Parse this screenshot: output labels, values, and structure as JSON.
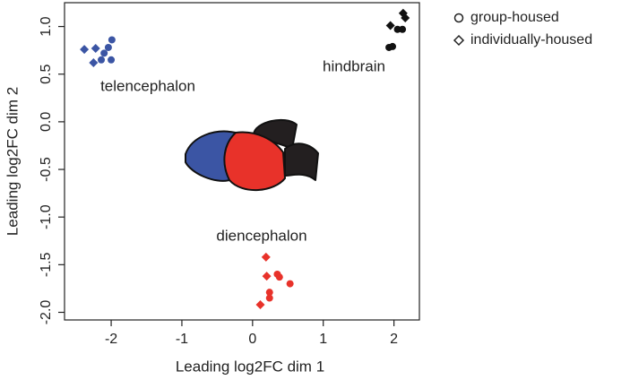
{
  "chart_data": {
    "type": "scatter",
    "x_label": "Leading log2FC dim 1",
    "y_label": "Leading log2FC dim 2",
    "xlim": [
      -2.66,
      2.36
    ],
    "ylim": [
      -2.08,
      1.25
    ],
    "xticks": [
      -2,
      -1,
      0,
      1,
      2
    ],
    "yticks": [
      {
        "value": 1,
        "label": "1.0"
      },
      0.5,
      {
        "value": 0,
        "label": "0.0"
      },
      -0.5,
      {
        "value": -1,
        "label": "-1.0"
      },
      -1.5,
      {
        "value": -2,
        "label": "-2.0"
      }
    ],
    "legend": [
      {
        "label": "group-housed",
        "marker": "circle"
      },
      {
        "label": "individually-housed",
        "marker": "diamond"
      }
    ],
    "series": [
      {
        "name": "telencephalon",
        "color": "#3b55a4",
        "group": {
          "x": [
            -1.99,
            -2.04,
            -2.1,
            -2.0,
            -2.14
          ],
          "y": [
            0.86,
            0.78,
            0.72,
            0.65,
            0.65
          ]
        },
        "individual": {
          "x": [
            -2.38,
            -2.22,
            -2.25
          ],
          "y": [
            0.76,
            0.77,
            0.62
          ]
        }
      },
      {
        "name": "hindbrain",
        "color": "#111111",
        "group": {
          "x": [
            2.05,
            2.12,
            1.93,
            1.98
          ],
          "y": [
            0.97,
            0.97,
            0.78,
            0.79
          ]
        },
        "individual": {
          "x": [
            2.13,
            2.16,
            1.95
          ],
          "y": [
            1.14,
            1.09,
            1.01
          ]
        }
      },
      {
        "name": "diencephalon",
        "color": "#e8322a",
        "group": {
          "x": [
            0.35,
            0.38,
            0.24,
            0.24,
            0.53
          ],
          "y": [
            -1.6,
            -1.63,
            -1.79,
            -1.85,
            -1.7
          ]
        },
        "individual": {
          "x": [
            0.19,
            0.2,
            0.11
          ],
          "y": [
            -1.42,
            -1.62,
            -1.92
          ]
        }
      }
    ]
  }
}
